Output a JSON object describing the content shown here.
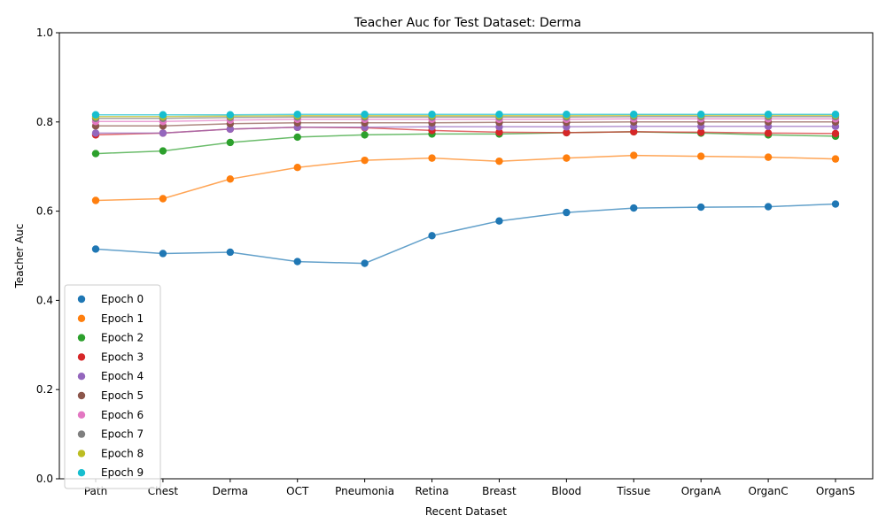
{
  "chart_data": {
    "type": "line",
    "title": "Teacher Auc for Test Dataset: Derma",
    "xlabel": "Recent Dataset",
    "ylabel": "Teacher Auc",
    "ylim": [
      0,
      1
    ],
    "yticks": [
      "0.0",
      "0.2",
      "0.4",
      "0.6",
      "0.8",
      "1.0"
    ],
    "grid": false,
    "legend_position": "lower-left",
    "categories": [
      "Path",
      "Chest",
      "Derma",
      "OCT",
      "Pneumonia",
      "Retina",
      "Breast",
      "Blood",
      "Tissue",
      "OrganA",
      "OrganC",
      "OrganS"
    ],
    "series": [
      {
        "name": "Epoch 0",
        "color": "#1f77b4",
        "values": [
          0.515,
          0.505,
          0.508,
          0.487,
          0.483,
          0.545,
          0.578,
          0.597,
          0.607,
          0.609,
          0.61,
          0.616
        ]
      },
      {
        "name": "Epoch 1",
        "color": "#ff7f0e",
        "values": [
          0.624,
          0.628,
          0.672,
          0.698,
          0.714,
          0.719,
          0.712,
          0.719,
          0.725,
          0.723,
          0.721,
          0.717
        ]
      },
      {
        "name": "Epoch 2",
        "color": "#2ca02c",
        "values": [
          0.729,
          0.735,
          0.754,
          0.766,
          0.771,
          0.773,
          0.773,
          0.776,
          0.778,
          0.775,
          0.771,
          0.768
        ]
      },
      {
        "name": "Epoch 3",
        "color": "#d62728",
        "values": [
          0.771,
          0.775,
          0.784,
          0.788,
          0.787,
          0.781,
          0.777,
          0.776,
          0.778,
          0.777,
          0.775,
          0.774
        ]
      },
      {
        "name": "Epoch 4",
        "color": "#9467bd",
        "values": [
          0.775,
          0.775,
          0.784,
          0.788,
          0.788,
          0.789,
          0.789,
          0.789,
          0.79,
          0.79,
          0.79,
          0.79
        ]
      },
      {
        "name": "Epoch 5",
        "color": "#8c564b",
        "values": [
          0.791,
          0.791,
          0.796,
          0.798,
          0.798,
          0.798,
          0.799,
          0.799,
          0.8,
          0.8,
          0.8,
          0.8
        ]
      },
      {
        "name": "Epoch 6",
        "color": "#e377c2",
        "values": [
          0.801,
          0.801,
          0.804,
          0.806,
          0.806,
          0.806,
          0.806,
          0.806,
          0.807,
          0.807,
          0.807,
          0.807
        ]
      },
      {
        "name": "Epoch 7",
        "color": "#7f7f7f",
        "values": [
          0.808,
          0.808,
          0.81,
          0.811,
          0.811,
          0.811,
          0.811,
          0.811,
          0.812,
          0.812,
          0.812,
          0.812
        ]
      },
      {
        "name": "Epoch 8",
        "color": "#bcbd22",
        "values": [
          0.812,
          0.812,
          0.813,
          0.814,
          0.814,
          0.814,
          0.814,
          0.814,
          0.815,
          0.815,
          0.815,
          0.815
        ]
      },
      {
        "name": "Epoch 9",
        "color": "#17becf",
        "values": [
          0.816,
          0.816,
          0.816,
          0.817,
          0.817,
          0.817,
          0.817,
          0.817,
          0.817,
          0.817,
          0.817,
          0.817
        ]
      }
    ]
  }
}
